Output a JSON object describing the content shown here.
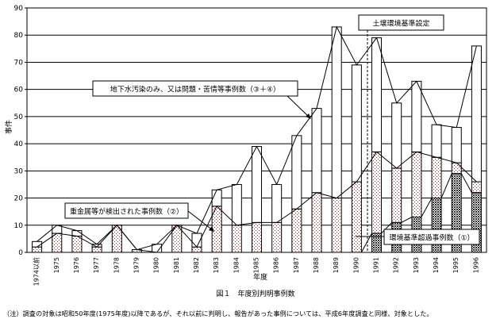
{
  "chart_data": {
    "type": "bar",
    "stacked": true,
    "categories": [
      "1974以前",
      "1975",
      "1976",
      "1977",
      "1978",
      "1979",
      "1980",
      "1981",
      "1982",
      "1983",
      "1984",
      "1985",
      "1986",
      "1987",
      "1988",
      "1989",
      "1990",
      "1991",
      "1992",
      "1993",
      "1994",
      "1995",
      "1996"
    ],
    "series": [
      {
        "values": [
          0,
          0,
          0,
          0,
          0,
          0,
          0,
          0,
          0,
          0,
          0,
          0,
          0,
          0,
          0,
          0,
          0,
          7,
          11,
          13,
          20,
          29,
          22
        ]
      },
      {
        "values": [
          2,
          7,
          6,
          2,
          10,
          1,
          0,
          10,
          2,
          17,
          10,
          11,
          11,
          16,
          22,
          20,
          26,
          30,
          20,
          24,
          15,
          4,
          4
        ]
      },
      {
        "values": [
          2,
          3,
          2,
          1,
          0,
          0,
          3,
          0,
          5,
          6,
          15,
          28,
          14,
          27,
          31,
          63,
          43,
          42,
          24,
          26,
          12,
          13,
          50
        ]
      }
    ],
    "ylabel": "事件",
    "xlabel": "年度",
    "ylim": [
      0,
      90
    ],
    "yticks": [
      0,
      10,
      20,
      30,
      40,
      50,
      60,
      70,
      80,
      90
    ],
    "grid": true,
    "annotations": {
      "a1": "地下水汚染のみ、又は問題・苦情等事例数（③＋④）",
      "a2": "重金属等が検出された事例数（②）",
      "a3": "環境基準超過事例数（①）",
      "a4": "土壌環境基準設定"
    },
    "caption": "図１　年度別判明事例数",
    "note": "（注）調査の対象は昭和50年度(1975年度)以降であるが、それ以前に判明し、報告があった事例については、平成6年度調査と同様、対象とした。",
    "colors": {
      "outline": "#000000",
      "background": "#ffffff",
      "dots_series2": "#c0202a",
      "checker_series1": "#4a4a4a"
    }
  }
}
